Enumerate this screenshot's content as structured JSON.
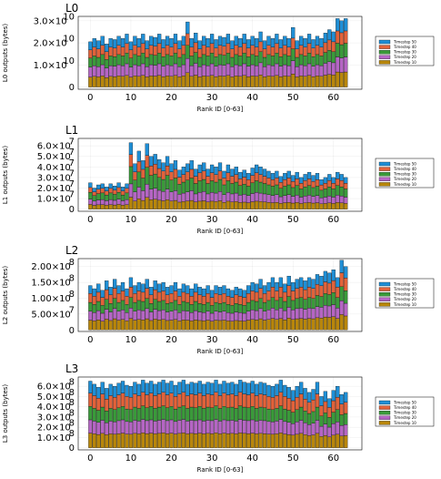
{
  "chart_data": [
    {
      "type": "bar",
      "stacked": true,
      "title": "L0",
      "xlabel": "Rank ID [0-63]",
      "ylabel": "L0 outputs (bytes)",
      "yticks": [
        0,
        10000000000,
        20000000000,
        30000000000
      ],
      "ytick_labels": [
        {
          "m": "0",
          "e": ""
        },
        {
          "m": "1.0×10",
          "e": "10"
        },
        {
          "m": "2.0×10",
          "e": "10"
        },
        {
          "m": "3.0×10",
          "e": "10"
        }
      ],
      "ylim": [
        -1000000000,
        32000000000
      ],
      "xticks": [
        0,
        10,
        20,
        30,
        40,
        50,
        60
      ],
      "xlim": [
        -3,
        67
      ],
      "x": [
        0,
        1,
        2,
        3,
        4,
        5,
        6,
        7,
        8,
        9,
        10,
        11,
        12,
        13,
        14,
        15,
        16,
        17,
        18,
        19,
        20,
        21,
        22,
        23,
        24,
        25,
        26,
        27,
        28,
        29,
        30,
        31,
        32,
        33,
        34,
        35,
        36,
        37,
        38,
        39,
        40,
        41,
        42,
        43,
        44,
        45,
        46,
        47,
        48,
        49,
        50,
        51,
        52,
        53,
        54,
        55,
        56,
        57,
        58,
        59,
        60,
        61,
        62,
        63
      ],
      "totals": [
        20500000000.0,
        22000000000.0,
        21000000000.0,
        23000000000.0,
        19500000000.0,
        22000000000.0,
        21500000000.0,
        23000000000.0,
        22000000000.0,
        24000000000.0,
        20500000000.0,
        23000000000.0,
        22000000000.0,
        24000000000.0,
        21000000000.0,
        23000000000.0,
        22500000000.0,
        24000000000.0,
        21500000000.0,
        23000000000.0,
        22000000000.0,
        24000000000.0,
        21000000000.0,
        23000000000.0,
        29500000000.0,
        22000000000.0,
        24500000000.0,
        21000000000.0,
        23000000000.0,
        22000000000.0,
        24000000000.0,
        21500000000.0,
        23000000000.0,
        22500000000.0,
        24000000000.0,
        21000000000.0,
        23000000000.0,
        22000000000.0,
        24000000000.0,
        21500000000.0,
        23000000000.0,
        22000000000.0,
        25000000000.0,
        21000000000.0,
        23000000000.0,
        22000000000.0,
        24000000000.0,
        21500000000.0,
        23000000000.0,
        22000000000.0,
        27000000000.0,
        21000000000.0,
        23000000000.0,
        22000000000.0,
        24000000000.0,
        21500000000.0,
        23000000000.0,
        22000000000.0,
        24500000000.0,
        26000000000.0,
        25000000000.0,
        31000000000.0,
        30000000000.0,
        31000000000.0
      ],
      "shares": [
        0.22,
        0.22,
        0.2,
        0.18,
        0.18
      ],
      "series": [
        {
          "name": "Timestep 10",
          "color": "#b8860b"
        },
        {
          "name": "Timestep 20",
          "color": "#b565c4"
        },
        {
          "name": "Timestep 30",
          "color": "#3a9a3a"
        },
        {
          "name": "Timestep 40",
          "color": "#e2623a"
        },
        {
          "name": "Timestep 50",
          "color": "#1f8fd6"
        }
      ]
    },
    {
      "type": "bar",
      "stacked": true,
      "title": "L1",
      "xlabel": "Rank ID [0-63]",
      "ylabel": "L1 outputs (bytes)",
      "yticks": [
        0,
        10000000,
        20000000,
        30000000,
        40000000,
        50000000,
        60000000
      ],
      "ytick_labels": [
        {
          "m": "0",
          "e": ""
        },
        {
          "m": "1.0×10",
          "e": "7"
        },
        {
          "m": "2.0×10",
          "e": "7"
        },
        {
          "m": "3.0×10",
          "e": "7"
        },
        {
          "m": "4.0×10",
          "e": "7"
        },
        {
          "m": "5.0×10",
          "e": "7"
        },
        {
          "m": "6.0×10",
          "e": "7"
        }
      ],
      "ylim": [
        -2000000,
        67000000
      ],
      "xticks": [
        0,
        10,
        20,
        30,
        40,
        50,
        60
      ],
      "xlim": [
        -3,
        67
      ],
      "x": [
        0,
        1,
        2,
        3,
        4,
        5,
        6,
        7,
        8,
        9,
        10,
        11,
        12,
        13,
        14,
        15,
        16,
        17,
        18,
        19,
        20,
        21,
        22,
        23,
        24,
        25,
        26,
        27,
        28,
        29,
        30,
        31,
        32,
        33,
        34,
        35,
        36,
        37,
        38,
        39,
        40,
        41,
        42,
        43,
        44,
        45,
        46,
        47,
        48,
        49,
        50,
        51,
        52,
        53,
        54,
        55,
        56,
        57,
        58,
        59,
        60,
        61,
        62,
        63
      ],
      "totals": [
        25000000.0,
        20000000.0,
        23000000.0,
        24000000.0,
        21000000.0,
        24000000.0,
        22000000.0,
        25000000.0,
        21000000.0,
        24000000.0,
        63000000.0,
        43000000.0,
        55000000.0,
        46000000.0,
        62000000.0,
        50000000.0,
        52000000.0,
        47000000.0,
        44000000.0,
        50000000.0,
        43000000.0,
        46000000.0,
        37000000.0,
        40000000.0,
        43000000.0,
        46000000.0,
        38000000.0,
        42000000.0,
        44000000.0,
        38000000.0,
        42000000.0,
        40000000.0,
        44000000.0,
        36000000.0,
        42000000.0,
        38000000.0,
        40000000.0,
        35000000.0,
        37000000.0,
        34000000.0,
        39000000.0,
        42000000.0,
        40000000.0,
        38000000.0,
        36000000.0,
        34000000.0,
        36000000.0,
        31000000.0,
        34000000.0,
        36000000.0,
        32000000.0,
        35000000.0,
        30000000.0,
        33000000.0,
        35000000.0,
        32000000.0,
        34000000.0,
        28000000.0,
        30000000.0,
        33000000.0,
        30000000.0,
        35000000.0,
        33000000.0,
        30000000.0
      ],
      "shares": [
        0.18,
        0.2,
        0.26,
        0.18,
        0.18
      ],
      "series": [
        {
          "name": "Timestep 10",
          "color": "#b8860b"
        },
        {
          "name": "Timestep 20",
          "color": "#b565c4"
        },
        {
          "name": "Timestep 30",
          "color": "#3a9a3a"
        },
        {
          "name": "Timestep 40",
          "color": "#e2623a"
        },
        {
          "name": "Timestep 50",
          "color": "#1f8fd6"
        }
      ]
    },
    {
      "type": "bar",
      "stacked": true,
      "title": "L2",
      "xlabel": "Rank ID [0-63]",
      "ylabel": "L2 outputs (bytes)",
      "yticks": [
        0,
        50000000,
        100000000,
        150000000,
        200000000
      ],
      "ytick_labels": [
        {
          "m": "0",
          "e": ""
        },
        {
          "m": "5.00×10",
          "e": "7"
        },
        {
          "m": "1.00×10",
          "e": "8"
        },
        {
          "m": "1.50×10",
          "e": "8"
        },
        {
          "m": "2.00×10",
          "e": "8"
        }
      ],
      "ylim": [
        -5000000,
        225000000
      ],
      "xticks": [
        0,
        10,
        20,
        30,
        40,
        50,
        60
      ],
      "xlim": [
        -3,
        67
      ],
      "x": [
        0,
        1,
        2,
        3,
        4,
        5,
        6,
        7,
        8,
        9,
        10,
        11,
        12,
        13,
        14,
        15,
        16,
        17,
        18,
        19,
        20,
        21,
        22,
        23,
        24,
        25,
        26,
        27,
        28,
        29,
        30,
        31,
        32,
        33,
        34,
        35,
        36,
        37,
        38,
        39,
        40,
        41,
        42,
        43,
        44,
        45,
        46,
        47,
        48,
        49,
        50,
        51,
        52,
        53,
        54,
        55,
        56,
        57,
        58,
        59,
        60,
        61,
        62,
        63
      ],
      "totals": [
        140000000.0,
        130000000.0,
        145000000.0,
        125000000.0,
        155000000.0,
        135000000.0,
        160000000.0,
        140000000.0,
        150000000.0,
        130000000.0,
        165000000.0,
        140000000.0,
        150000000.0,
        145000000.0,
        160000000.0,
        135000000.0,
        155000000.0,
        145000000.0,
        150000000.0,
        135000000.0,
        140000000.0,
        150000000.0,
        130000000.0,
        145000000.0,
        140000000.0,
        130000000.0,
        145000000.0,
        135000000.0,
        130000000.0,
        140000000.0,
        125000000.0,
        140000000.0,
        135000000.0,
        140000000.0,
        130000000.0,
        125000000.0,
        135000000.0,
        130000000.0,
        125000000.0,
        140000000.0,
        150000000.0,
        145000000.0,
        160000000.0,
        140000000.0,
        150000000.0,
        165000000.0,
        150000000.0,
        165000000.0,
        145000000.0,
        170000000.0,
        150000000.0,
        160000000.0,
        165000000.0,
        155000000.0,
        165000000.0,
        160000000.0,
        175000000.0,
        170000000.0,
        185000000.0,
        180000000.0,
        190000000.0,
        165000000.0,
        220000000.0,
        200000000.0
      ],
      "shares": [
        0.22,
        0.2,
        0.2,
        0.2,
        0.18
      ],
      "series": [
        {
          "name": "Timestep 10",
          "color": "#b8860b"
        },
        {
          "name": "Timestep 20",
          "color": "#b565c4"
        },
        {
          "name": "Timestep 30",
          "color": "#3a9a3a"
        },
        {
          "name": "Timestep 40",
          "color": "#e2623a"
        },
        {
          "name": "Timestep 50",
          "color": "#1f8fd6"
        }
      ]
    },
    {
      "type": "bar",
      "stacked": true,
      "title": "L3",
      "xlabel": "Rank ID [0-63]",
      "ylabel": "L3 outputs (bytes)",
      "yticks": [
        0,
        100000000,
        200000000,
        300000000,
        400000000,
        500000000,
        600000000
      ],
      "ytick_labels": [
        {
          "m": "0",
          "e": ""
        },
        {
          "m": "1.0×10",
          "e": "8"
        },
        {
          "m": "2.0×10",
          "e": "8"
        },
        {
          "m": "3.0×10",
          "e": "8"
        },
        {
          "m": "4.0×10",
          "e": "8"
        },
        {
          "m": "5.0×10",
          "e": "8"
        },
        {
          "m": "6.0×10",
          "e": "8"
        }
      ],
      "ylim": [
        -20000000,
        690000000
      ],
      "xticks": [
        0,
        10,
        20,
        30,
        40,
        50,
        60
      ],
      "xlim": [
        -3,
        67
      ],
      "x": [
        0,
        1,
        2,
        3,
        4,
        5,
        6,
        7,
        8,
        9,
        10,
        11,
        12,
        13,
        14,
        15,
        16,
        17,
        18,
        19,
        20,
        21,
        22,
        23,
        24,
        25,
        26,
        27,
        28,
        29,
        30,
        31,
        32,
        33,
        34,
        35,
        36,
        37,
        38,
        39,
        40,
        41,
        42,
        43,
        44,
        45,
        46,
        47,
        48,
        49,
        50,
        51,
        52,
        53,
        54,
        55,
        56,
        57,
        58,
        59,
        60,
        61,
        62,
        63
      ],
      "totals": [
        650000000.0,
        620000000.0,
        590000000.0,
        640000000.0,
        580000000.0,
        620000000.0,
        600000000.0,
        630000000.0,
        650000000.0,
        610000000.0,
        600000000.0,
        640000000.0,
        620000000.0,
        660000000.0,
        630000000.0,
        650000000.0,
        620000000.0,
        640000000.0,
        660000000.0,
        630000000.0,
        650000000.0,
        610000000.0,
        640000000.0,
        660000000.0,
        620000000.0,
        640000000.0,
        630000000.0,
        650000000.0,
        620000000.0,
        640000000.0,
        630000000.0,
        660000000.0,
        620000000.0,
        650000000.0,
        630000000.0,
        640000000.0,
        620000000.0,
        660000000.0,
        640000000.0,
        630000000.0,
        650000000.0,
        620000000.0,
        640000000.0,
        630000000.0,
        610000000.0,
        600000000.0,
        620000000.0,
        660000000.0,
        610000000.0,
        590000000.0,
        560000000.0,
        600000000.0,
        640000000.0,
        580000000.0,
        540000000.0,
        570000000.0,
        640000000.0,
        500000000.0,
        550000000.0,
        480000000.0,
        560000000.0,
        600000000.0,
        520000000.0,
        540000000.0
      ],
      "shares": [
        0.22,
        0.2,
        0.2,
        0.2,
        0.18
      ],
      "series": [
        {
          "name": "Timestep 10",
          "color": "#b8860b"
        },
        {
          "name": "Timestep 20",
          "color": "#b565c4"
        },
        {
          "name": "Timestep 30",
          "color": "#3a9a3a"
        },
        {
          "name": "Timestep 40",
          "color": "#e2623a"
        },
        {
          "name": "Timestep 50",
          "color": "#1f8fd6"
        }
      ]
    }
  ]
}
